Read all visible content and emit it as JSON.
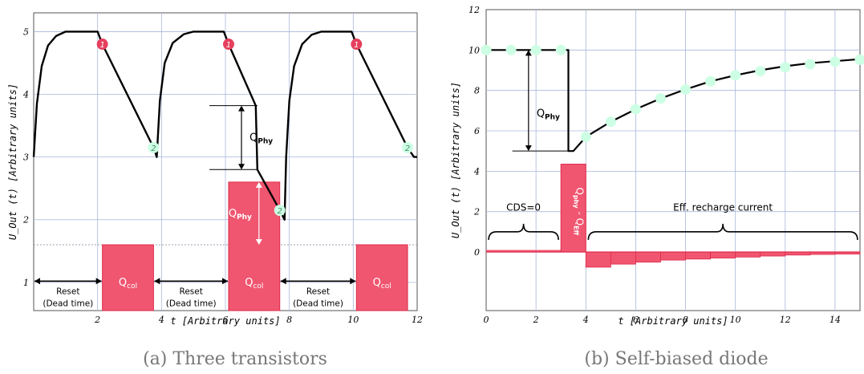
{
  "chart_data": [
    {
      "type": "line",
      "caption": "(a) Three transistors",
      "xlabel": "t [Arbitrary units]",
      "ylabel": "U_Out (t) [Arbitrary units]",
      "xlim": [
        0,
        12
      ],
      "ylim": [
        0.55,
        5.3
      ],
      "xticks": [
        "2",
        "4",
        "6",
        "8",
        "10",
        "12"
      ],
      "yticks": [
        "1",
        "2",
        "3",
        "4",
        "5"
      ],
      "grid": true,
      "curve": [
        [
          0.0,
          3.0
        ],
        [
          0.1,
          3.85
        ],
        [
          0.25,
          4.45
        ],
        [
          0.45,
          4.78
        ],
        [
          0.7,
          4.93
        ],
        [
          1.0,
          5.0
        ],
        [
          2.0,
          5.0
        ],
        [
          2.15,
          4.8
        ],
        [
          3.75,
          3.15
        ],
        [
          3.85,
          3.0
        ],
        [
          3.95,
          3.9
        ],
        [
          4.1,
          4.5
        ],
        [
          4.35,
          4.82
        ],
        [
          4.7,
          4.96
        ],
        [
          5.0,
          5.0
        ],
        [
          5.95,
          5.0
        ],
        [
          6.1,
          4.8
        ],
        [
          6.95,
          3.82
        ],
        [
          7.0,
          2.8
        ],
        [
          7.65,
          2.2
        ],
        [
          7.85,
          2.0
        ],
        [
          7.9,
          3.0
        ],
        [
          8.0,
          3.9
        ],
        [
          8.15,
          4.45
        ],
        [
          8.4,
          4.8
        ],
        [
          8.7,
          4.95
        ],
        [
          9.0,
          5.0
        ],
        [
          9.95,
          5.0
        ],
        [
          10.1,
          4.8
        ],
        [
          11.7,
          3.15
        ],
        [
          11.9,
          3.0
        ],
        [
          12.0,
          3.0
        ]
      ],
      "markers_red": [
        {
          "x": 2.15,
          "y": 4.8,
          "label": "1"
        },
        {
          "x": 6.1,
          "y": 4.8,
          "label": "1"
        },
        {
          "x": 10.1,
          "y": 4.8,
          "label": "1"
        }
      ],
      "markers_green": [
        {
          "x": 3.75,
          "y": 3.15,
          "label": "2"
        },
        {
          "x": 7.7,
          "y": 2.15,
          "label": "2"
        },
        {
          "x": 11.7,
          "y": 3.15,
          "label": "2"
        }
      ],
      "bars": [
        {
          "x0": 2.15,
          "x1": 3.75,
          "top": 1.6,
          "label": "Qcol"
        },
        {
          "x0": 6.1,
          "x1": 7.7,
          "top": 2.6,
          "label": "Qcol"
        },
        {
          "x0": 10.1,
          "x1": 11.7,
          "top": 1.6,
          "label": "Qcol"
        }
      ],
      "threshold": 1.6,
      "qphy_bracket": {
        "x": 6.0,
        "y0": 2.8,
        "y1": 3.82,
        "label": "QPhy"
      },
      "qphy_arrow": {
        "x": 7.05,
        "y0": 1.6,
        "y1": 2.6,
        "label": "QPhy"
      },
      "reset_spans": [
        {
          "x0": 0.0,
          "x1": 2.15,
          "y": 0.55,
          "label": "Reset",
          "sublabel": "(Dead time)"
        },
        {
          "x0": 3.75,
          "x1": 6.1,
          "y": 0.55,
          "label": "Reset",
          "sublabel": "(Dead time)"
        },
        {
          "x0": 7.7,
          "x1": 10.1,
          "y": 0.55,
          "label": "Reset",
          "sublabel": "(Dead time)"
        }
      ]
    },
    {
      "type": "line",
      "caption": "(b) Self-biased diode",
      "xlabel": "t [Arbitrary units]",
      "ylabel": "U_Out (t) [Arbitrary units]",
      "xlim": [
        0,
        15
      ],
      "ylim": [
        -2.9,
        12
      ],
      "xticks": [
        "0",
        "2",
        "4",
        "6",
        "8",
        "10",
        "12",
        "14"
      ],
      "yticks": [
        "0",
        "2",
        "4",
        "6",
        "8",
        "10",
        "12"
      ],
      "grid": true,
      "curve": [
        [
          0,
          10.0
        ],
        [
          3.3,
          10.0
        ],
        [
          3.3,
          5.0
        ],
        [
          3.5,
          5.0
        ],
        [
          4,
          5.7
        ],
        [
          5,
          6.45
        ],
        [
          6,
          7.07
        ],
        [
          7,
          7.6
        ],
        [
          8,
          8.05
        ],
        [
          9,
          8.45
        ],
        [
          10,
          8.75
        ],
        [
          11,
          9.0
        ],
        [
          12,
          9.2
        ],
        [
          13,
          9.35
        ],
        [
          14,
          9.45
        ],
        [
          15,
          9.55
        ]
      ],
      "dots": [
        [
          0,
          10
        ],
        [
          1,
          10
        ],
        [
          2,
          10
        ],
        [
          3,
          10
        ],
        [
          4,
          5.7
        ],
        [
          5,
          6.45
        ],
        [
          6,
          7.07
        ],
        [
          7,
          7.6
        ],
        [
          8,
          8.05
        ],
        [
          9,
          8.45
        ],
        [
          10,
          8.75
        ],
        [
          11,
          8.95
        ],
        [
          12,
          9.15
        ],
        [
          13,
          9.3
        ],
        [
          14,
          9.42
        ],
        [
          15,
          9.52
        ]
      ],
      "baseline_bar": {
        "x0": 0,
        "x1": 3,
        "value": 0.1
      },
      "big_bar": {
        "x0": 3,
        "x1": 4,
        "value": 4.35,
        "label_main": "Q",
        "label_phy": "phy",
        "label_mid": " - Q",
        "label_eff": "Eff"
      },
      "neg_bars": [
        {
          "x0": 4,
          "x1": 5,
          "value": -0.75
        },
        {
          "x0": 5,
          "x1": 6,
          "value": -0.6
        },
        {
          "x0": 6,
          "x1": 7,
          "value": -0.5
        },
        {
          "x0": 7,
          "x1": 8,
          "value": -0.4
        },
        {
          "x0": 8,
          "x1": 9,
          "value": -0.35
        },
        {
          "x0": 9,
          "x1": 10,
          "value": -0.3
        },
        {
          "x0": 10,
          "x1": 11,
          "value": -0.25
        },
        {
          "x0": 11,
          "x1": 12,
          "value": -0.2
        },
        {
          "x0": 12,
          "x1": 13,
          "value": -0.15
        },
        {
          "x0": 13,
          "x1": 14,
          "value": -0.12
        },
        {
          "x0": 14,
          "x1": 15,
          "value": -0.1
        }
      ],
      "qphy_bracket": {
        "x": 1.7,
        "y0": 5.0,
        "y1": 10.0,
        "label": "QPhy"
      },
      "cds_brace": {
        "x0": 0.1,
        "x1": 2.9,
        "y": 1.0,
        "label": "CDS=0"
      },
      "recharge_brace": {
        "x0": 4.1,
        "x1": 14.9,
        "y": 1.0,
        "label": "Eff. recharge current"
      }
    }
  ],
  "colors": {
    "bar": "#f05670",
    "bar_edge": "#e02a4c",
    "marker_red": "#e5405e",
    "marker_green": "#ccffe3",
    "grid": "#aab6da",
    "threshold": "#9aa0b0"
  }
}
